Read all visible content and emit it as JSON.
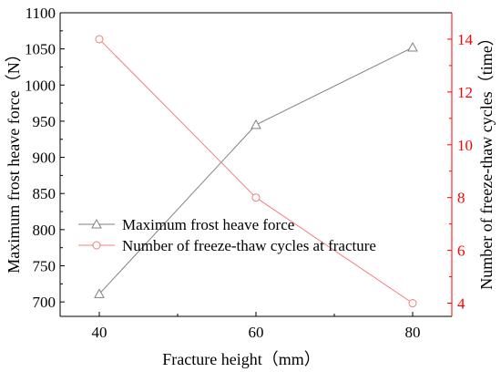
{
  "chart_data": {
    "type": "line",
    "xlabel": "Fracture height（mm）",
    "ylabel_left": "Maximum frost heave force（N）",
    "ylabel_right": "Number of freeze-thaw cycles（time）",
    "x": [
      40,
      60,
      80
    ],
    "xlim": [
      35,
      85
    ],
    "xticks": [
      40,
      60,
      80
    ],
    "ylim_left": [
      680,
      1100
    ],
    "yticks_left": [
      700,
      750,
      800,
      850,
      900,
      950,
      1000,
      1050,
      1100
    ],
    "ylim_right": [
      3.5,
      15
    ],
    "yticks_right": [
      4,
      6,
      8,
      10,
      12,
      14
    ],
    "grid": false,
    "legend_position": "left",
    "series": [
      {
        "name": "Maximum frost heave force",
        "axis": "left",
        "marker": "triangle",
        "color": "#808080",
        "values": [
          711,
          945,
          1052
        ]
      },
      {
        "name": "Number of freeze-thaw cycles at fracture",
        "axis": "right",
        "marker": "circle",
        "color": "#f08080",
        "values": [
          14,
          8,
          4
        ]
      }
    ],
    "colors": {
      "axis": "#000000",
      "right_axis": "#ff0000"
    }
  }
}
